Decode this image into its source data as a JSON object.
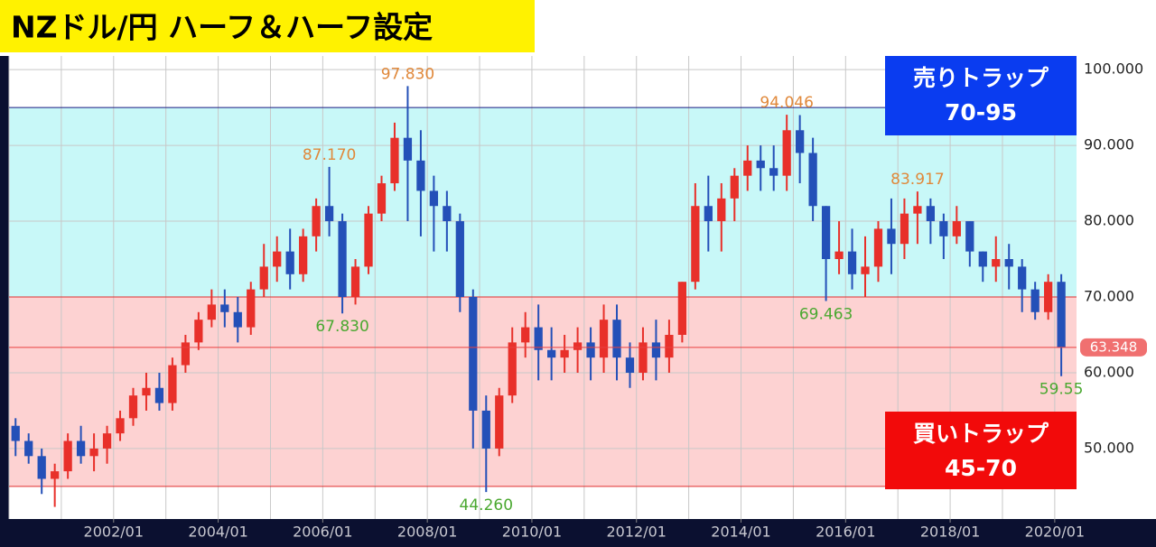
{
  "chart_data": {
    "type": "candlestick",
    "title": "NZドル/円 ハーフ＆ハーフ設定",
    "x": [
      "2000/01",
      "2000/04",
      "2000/07",
      "2000/10",
      "2001/01",
      "2001/04",
      "2001/07",
      "2001/10",
      "2002/01",
      "2002/04",
      "2002/07",
      "2002/10",
      "2003/01",
      "2003/04",
      "2003/07",
      "2003/10",
      "2004/01",
      "2004/04",
      "2004/07",
      "2004/10",
      "2005/01",
      "2005/04",
      "2005/07",
      "2005/10",
      "2006/01",
      "2006/04",
      "2006/07",
      "2006/10",
      "2007/01",
      "2007/04",
      "2007/07",
      "2007/10",
      "2008/01",
      "2008/04",
      "2008/07",
      "2008/10",
      "2009/01",
      "2009/04",
      "2009/07",
      "2009/10",
      "2010/01",
      "2010/04",
      "2010/07",
      "2010/10",
      "2011/01",
      "2011/04",
      "2011/07",
      "2011/10",
      "2012/01",
      "2012/04",
      "2012/07",
      "2012/10",
      "2013/01",
      "2013/04",
      "2013/07",
      "2013/10",
      "2014/01",
      "2014/04",
      "2014/07",
      "2014/10",
      "2015/01",
      "2015/04",
      "2015/07",
      "2015/10",
      "2016/01",
      "2016/04",
      "2016/07",
      "2016/10",
      "2017/01",
      "2017/04",
      "2017/07",
      "2017/10",
      "2018/01",
      "2018/04",
      "2018/07",
      "2018/10",
      "2019/01",
      "2019/04",
      "2019/07",
      "2019/10",
      "2020/01"
    ],
    "open": [
      53,
      51,
      49,
      46,
      47,
      51,
      49,
      50,
      52,
      54,
      57,
      58,
      56,
      61,
      64,
      67,
      69,
      68,
      66,
      71,
      74,
      76,
      73,
      78,
      82,
      80,
      70,
      74,
      81,
      85,
      91,
      88,
      84,
      82,
      80,
      70,
      55,
      50,
      57,
      64,
      66,
      63,
      62,
      63,
      64,
      62,
      67,
      62,
      60,
      64,
      62,
      65,
      72,
      82,
      80,
      83,
      86,
      88,
      87,
      86,
      92,
      89,
      82,
      75,
      76,
      73,
      74,
      79,
      77,
      81,
      82,
      80,
      78,
      80,
      76,
      74,
      75,
      74,
      71,
      68,
      72
    ],
    "high": [
      54,
      52,
      50,
      48,
      52,
      53,
      52,
      53,
      55,
      58,
      60,
      60,
      62,
      65,
      68,
      71,
      71,
      70,
      72,
      77,
      78,
      79,
      79,
      83,
      87.17,
      81,
      75,
      82,
      86,
      93,
      97.83,
      92,
      86,
      84,
      81,
      71,
      57,
      58,
      66,
      68,
      69,
      66,
      65,
      66,
      66,
      69,
      69,
      64,
      66,
      67,
      67,
      72,
      85,
      86,
      85,
      87,
      90,
      90,
      90,
      94.046,
      94,
      91,
      82,
      80,
      79,
      78,
      80,
      83,
      83,
      83.917,
      83,
      81,
      82,
      80,
      76,
      78,
      77,
      75,
      72,
      73,
      73
    ],
    "low": [
      49,
      48,
      44,
      42.3,
      46,
      48,
      47,
      48,
      51,
      53,
      55,
      55,
      55,
      60,
      63,
      66,
      66,
      64,
      65,
      70,
      72,
      71,
      72,
      76,
      78,
      67.83,
      69,
      73,
      80,
      84,
      80,
      78,
      76,
      76,
      68,
      50,
      44.26,
      49,
      56,
      62,
      59,
      59,
      60,
      60,
      59,
      60,
      59,
      58,
      59,
      59,
      60,
      64,
      71,
      76,
      76,
      80,
      84,
      84,
      84,
      84,
      85,
      80,
      69.463,
      73,
      71,
      70,
      72,
      73,
      75,
      77,
      77,
      75,
      77,
      74,
      72,
      72,
      71,
      68,
      67,
      67,
      59.55
    ],
    "close": [
      51,
      49,
      46,
      47,
      51,
      49,
      50,
      52,
      54,
      57,
      58,
      56,
      61,
      64,
      67,
      69,
      68,
      66,
      71,
      74,
      76,
      73,
      78,
      82,
      80,
      70,
      74,
      81,
      85,
      91,
      88,
      84,
      82,
      80,
      70,
      55,
      50,
      57,
      64,
      66,
      63,
      62,
      63,
      64,
      62,
      67,
      62,
      60,
      64,
      62,
      65,
      72,
      82,
      80,
      83,
      86,
      88,
      87,
      86,
      92,
      89,
      82,
      75,
      76,
      73,
      74,
      79,
      77,
      81,
      82,
      80,
      78,
      80,
      76,
      74,
      75,
      74,
      71,
      68,
      72,
      63.348
    ],
    "up_color": "#e8302a",
    "down_color": "#2450b8",
    "xlim": [
      "2000/01",
      "2020/06"
    ],
    "xticks": [
      "2002/01",
      "2004/01",
      "2006/01",
      "2008/01",
      "2010/01",
      "2012/01",
      "2014/01",
      "2016/01",
      "2018/01",
      "2020/01"
    ],
    "ylim": [
      40.7,
      101.8
    ],
    "yticks": [
      {
        "value": 50,
        "label": "50.000"
      },
      {
        "value": 60,
        "label": "60.000"
      },
      {
        "value": 70,
        "label": "70.000"
      },
      {
        "value": 80,
        "label": "80.000"
      },
      {
        "value": 90,
        "label": "90.000"
      },
      {
        "value": 100,
        "label": "100.000"
      }
    ],
    "grid": true,
    "zones": [
      {
        "name": "売りトラップ",
        "label": "70-95",
        "from": 70,
        "to": 95,
        "color": "#c8f8f8",
        "box_color": "#0a3cf0",
        "line_color": "#1a1a80"
      },
      {
        "name": "買いトラップ",
        "label": "45-70",
        "from": 45,
        "to": 70,
        "color": "#fdd2d2",
        "box_color": "#f20a0a",
        "line_color": "#e03030"
      }
    ],
    "current": 63.348,
    "annotations": [
      {
        "value": 97.83,
        "label": "97.830",
        "x": "2007/07",
        "kind": "high"
      },
      {
        "value": 87.17,
        "label": "87.170",
        "x": "2006/01",
        "kind": "high"
      },
      {
        "value": 67.83,
        "label": "67.830",
        "x": "2006/04",
        "kind": "low"
      },
      {
        "value": 44.26,
        "label": "44.260",
        "x": "2009/01",
        "kind": "low"
      },
      {
        "value": 94.046,
        "label": "94.046",
        "x": "2014/10",
        "kind": "high"
      },
      {
        "value": 69.463,
        "label": "69.463",
        "x": "2015/07",
        "kind": "low"
      },
      {
        "value": 83.917,
        "label": "83.917",
        "x": "2017/04",
        "kind": "high"
      },
      {
        "value": 59.55,
        "label": "59.55",
        "x": "2020/01",
        "kind": "low"
      }
    ]
  }
}
